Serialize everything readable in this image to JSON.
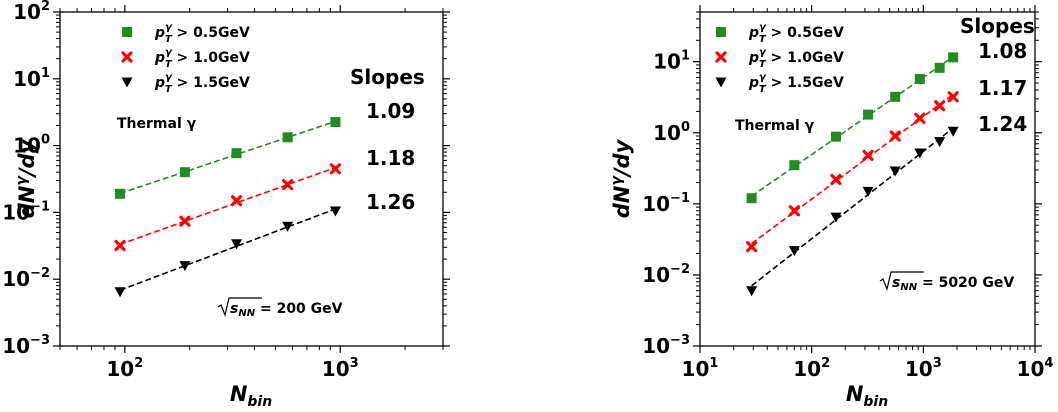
{
  "chart_data": [
    {
      "type": "scatter",
      "xscale": "log",
      "yscale": "log",
      "xlim": [
        50,
        3000
      ],
      "ylim": [
        0.001,
        100
      ],
      "xlabel": "N_bin",
      "ylabel": "dN^γ/dy",
      "x_ticks": [
        {
          "value": 100,
          "base": "10",
          "exp": "2"
        },
        {
          "value": 1000,
          "base": "10",
          "exp": "3"
        }
      ],
      "y_ticks": [
        {
          "value": 0.001,
          "base": "10",
          "exp": "−3"
        },
        {
          "value": 0.01,
          "base": "10",
          "exp": "−2"
        },
        {
          "value": 0.1,
          "base": "10",
          "exp": "−1"
        },
        {
          "value": 1,
          "base": "10",
          "exp": "0"
        },
        {
          "value": 10,
          "base": "10",
          "exp": "1"
        },
        {
          "value": 100,
          "base": "10",
          "exp": "2"
        }
      ],
      "annotation_label": "Thermal γ",
      "energy_label": {
        "prefix": "s",
        "sub": "NN",
        "value": " = 200 GeV"
      },
      "slopes_title": "Slopes",
      "legend_position": "upper-left",
      "series": [
        {
          "name": "p_T^γ > 0.5GeV",
          "name_parts": {
            "p": "p",
            "sup": "γ",
            "sub": "T",
            "rest": " > 0.5GeV"
          },
          "marker": "square",
          "color": "#228b22",
          "x": [
            95,
            190,
            330,
            570,
            950
          ],
          "y": [
            0.19,
            0.4,
            0.77,
            1.33,
            2.25
          ],
          "slope": "1.09"
        },
        {
          "name": "p_T^γ > 1.0GeV",
          "name_parts": {
            "p": "p",
            "sup": "γ",
            "sub": "T",
            "rest": " > 1.0GeV"
          },
          "marker": "x",
          "color": "#ff0000",
          "x": [
            95,
            190,
            330,
            570,
            950
          ],
          "y": [
            0.032,
            0.074,
            0.15,
            0.26,
            0.45
          ],
          "slope": "1.18"
        },
        {
          "name": "p_T^γ > 1.5GeV",
          "name_parts": {
            "p": "p",
            "sup": "γ",
            "sub": "T",
            "rest": " > 1.5GeV"
          },
          "marker": "triangle-down",
          "color": "#000000",
          "x": [
            95,
            190,
            330,
            570,
            950
          ],
          "y": [
            0.0065,
            0.016,
            0.034,
            0.062,
            0.105
          ],
          "slope": "1.26"
        }
      ]
    },
    {
      "type": "scatter",
      "xscale": "log",
      "yscale": "log",
      "xlim": [
        10,
        10000
      ],
      "ylim": [
        0.001,
        50
      ],
      "xlabel": "N_bin",
      "ylabel": "dN^γ/dy",
      "x_ticks": [
        {
          "value": 10,
          "base": "10",
          "exp": "1"
        },
        {
          "value": 100,
          "base": "10",
          "exp": "2"
        },
        {
          "value": 1000,
          "base": "10",
          "exp": "3"
        },
        {
          "value": 10000,
          "base": "10",
          "exp": "4"
        }
      ],
      "y_ticks": [
        {
          "value": 0.001,
          "base": "10",
          "exp": "−3"
        },
        {
          "value": 0.01,
          "base": "10",
          "exp": "−2"
        },
        {
          "value": 0.1,
          "base": "10",
          "exp": "−1"
        },
        {
          "value": 1,
          "base": "10",
          "exp": "0"
        },
        {
          "value": 10,
          "base": "10",
          "exp": "1"
        }
      ],
      "annotation_label": "Thermal γ",
      "energy_label": {
        "prefix": "s",
        "sub": "NN",
        "value": " = 5020 GeV"
      },
      "slopes_title": "Slopes",
      "legend_position": "upper-left",
      "series": [
        {
          "name": "p_T^γ > 0.5GeV",
          "name_parts": {
            "p": "p",
            "sup": "γ",
            "sub": "T",
            "rest": " > 0.5GeV"
          },
          "marker": "square",
          "color": "#228b22",
          "x": [
            29,
            70,
            165,
            320,
            560,
            930,
            1400,
            1850
          ],
          "y": [
            0.12,
            0.35,
            0.88,
            1.8,
            3.2,
            5.7,
            8.2,
            11.5
          ],
          "slope": "1.08"
        },
        {
          "name": "p_T^γ > 1.0GeV",
          "name_parts": {
            "p": "p",
            "sup": "γ",
            "sub": "T",
            "rest": " > 1.0GeV"
          },
          "marker": "x",
          "color": "#ff0000",
          "x": [
            29,
            70,
            165,
            320,
            560,
            930,
            1400,
            1850
          ],
          "y": [
            0.025,
            0.08,
            0.22,
            0.48,
            0.9,
            1.6,
            2.4,
            3.2
          ],
          "slope": "1.17"
        },
        {
          "name": "p_T^γ > 1.5GeV",
          "name_parts": {
            "p": "p",
            "sup": "γ",
            "sub": "T",
            "rest": " > 1.5GeV"
          },
          "marker": "triangle-down",
          "color": "#000000",
          "x": [
            29,
            70,
            165,
            320,
            560,
            930,
            1400,
            1850
          ],
          "y": [
            0.006,
            0.022,
            0.065,
            0.15,
            0.29,
            0.52,
            0.75,
            1.05
          ],
          "slope": "1.24"
        }
      ]
    }
  ]
}
